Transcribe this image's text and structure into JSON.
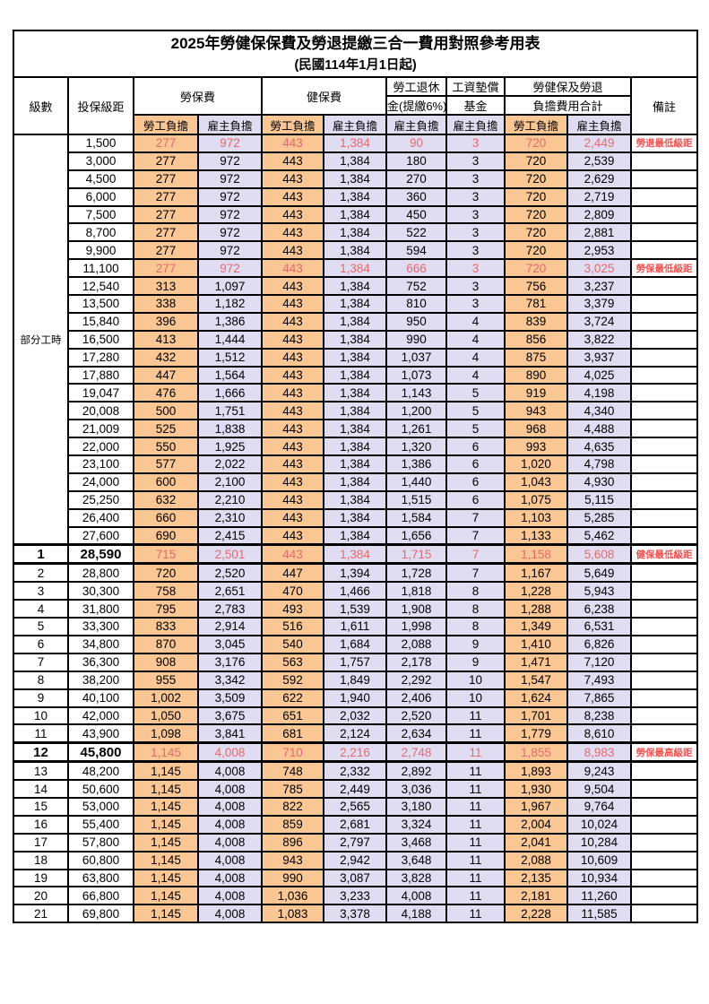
{
  "title": "2025年勞健保保費及勞退提繳三合一費用對照參考用表",
  "subtitle": "(民國114年1月1日起)",
  "columns": {
    "level": "級數",
    "bracket": "投保級距",
    "labor_group": "勞保費",
    "health_group": "健保費",
    "pension_line1": "勞工退休",
    "pension_line2": "金(提繳6%)",
    "wage_fund_line1": "工資墊償",
    "wage_fund_line2": "基金",
    "total_line1": "勞健保及勞退",
    "total_line2": "負擔費用合計",
    "remark": "備註",
    "employee": "勞工負擔",
    "employer": "雇主負擔"
  },
  "part_time_label": "部分工時",
  "colors": {
    "employee_fill": "#FAC693",
    "employer_fill": "#E0DDF2",
    "highlight_value_text": "#E8696B",
    "remark_text": "#EF5350",
    "border": "#000000"
  },
  "remarks_legend": [
    "勞退最低級距",
    "勞保最低級距",
    "健保最低級距",
    "勞保最高級距"
  ],
  "rows": [
    {
      "lv": "",
      "br": "1,500",
      "le": "277",
      "lr": "972",
      "he": "443",
      "hr": "1,384",
      "pe": "90",
      "wf": "3",
      "te": "720",
      "tr": "2,449",
      "rm": "勞退最低級距",
      "hl": true,
      "bd": false
    },
    {
      "lv": "",
      "br": "3,000",
      "le": "277",
      "lr": "972",
      "he": "443",
      "hr": "1,384",
      "pe": "180",
      "wf": "3",
      "te": "720",
      "tr": "2,539",
      "rm": "",
      "hl": false,
      "bd": false
    },
    {
      "lv": "",
      "br": "4,500",
      "le": "277",
      "lr": "972",
      "he": "443",
      "hr": "1,384",
      "pe": "270",
      "wf": "3",
      "te": "720",
      "tr": "2,629",
      "rm": "",
      "hl": false,
      "bd": false
    },
    {
      "lv": "",
      "br": "6,000",
      "le": "277",
      "lr": "972",
      "he": "443",
      "hr": "1,384",
      "pe": "360",
      "wf": "3",
      "te": "720",
      "tr": "2,719",
      "rm": "",
      "hl": false,
      "bd": false
    },
    {
      "lv": "",
      "br": "7,500",
      "le": "277",
      "lr": "972",
      "he": "443",
      "hr": "1,384",
      "pe": "450",
      "wf": "3",
      "te": "720",
      "tr": "2,809",
      "rm": "",
      "hl": false,
      "bd": false
    },
    {
      "lv": "",
      "br": "8,700",
      "le": "277",
      "lr": "972",
      "he": "443",
      "hr": "1,384",
      "pe": "522",
      "wf": "3",
      "te": "720",
      "tr": "2,881",
      "rm": "",
      "hl": false,
      "bd": false
    },
    {
      "lv": "",
      "br": "9,900",
      "le": "277",
      "lr": "972",
      "he": "443",
      "hr": "1,384",
      "pe": "594",
      "wf": "3",
      "te": "720",
      "tr": "2,953",
      "rm": "",
      "hl": false,
      "bd": false
    },
    {
      "lv": "",
      "br": "11,100",
      "le": "277",
      "lr": "972",
      "he": "443",
      "hr": "1,384",
      "pe": "666",
      "wf": "3",
      "te": "720",
      "tr": "3,025",
      "rm": "勞保最低級距",
      "hl": true,
      "bd": false
    },
    {
      "lv": "",
      "br": "12,540",
      "le": "313",
      "lr": "1,097",
      "he": "443",
      "hr": "1,384",
      "pe": "752",
      "wf": "3",
      "te": "756",
      "tr": "3,237",
      "rm": "",
      "hl": false,
      "bd": false
    },
    {
      "lv": "",
      "br": "13,500",
      "le": "338",
      "lr": "1,182",
      "he": "443",
      "hr": "1,384",
      "pe": "810",
      "wf": "3",
      "te": "781",
      "tr": "3,379",
      "rm": "",
      "hl": false,
      "bd": false
    },
    {
      "lv": "",
      "br": "15,840",
      "le": "396",
      "lr": "1,386",
      "he": "443",
      "hr": "1,384",
      "pe": "950",
      "wf": "4",
      "te": "839",
      "tr": "3,724",
      "rm": "",
      "hl": false,
      "bd": false
    },
    {
      "lv": "",
      "br": "16,500",
      "le": "413",
      "lr": "1,444",
      "he": "443",
      "hr": "1,384",
      "pe": "990",
      "wf": "4",
      "te": "856",
      "tr": "3,822",
      "rm": "",
      "hl": false,
      "bd": false
    },
    {
      "lv": "",
      "br": "17,280",
      "le": "432",
      "lr": "1,512",
      "he": "443",
      "hr": "1,384",
      "pe": "1,037",
      "wf": "4",
      "te": "875",
      "tr": "3,937",
      "rm": "",
      "hl": false,
      "bd": false
    },
    {
      "lv": "",
      "br": "17,880",
      "le": "447",
      "lr": "1,564",
      "he": "443",
      "hr": "1,384",
      "pe": "1,073",
      "wf": "4",
      "te": "890",
      "tr": "4,025",
      "rm": "",
      "hl": false,
      "bd": false
    },
    {
      "lv": "",
      "br": "19,047",
      "le": "476",
      "lr": "1,666",
      "he": "443",
      "hr": "1,384",
      "pe": "1,143",
      "wf": "5",
      "te": "919",
      "tr": "4,198",
      "rm": "",
      "hl": false,
      "bd": false
    },
    {
      "lv": "",
      "br": "20,008",
      "le": "500",
      "lr": "1,751",
      "he": "443",
      "hr": "1,384",
      "pe": "1,200",
      "wf": "5",
      "te": "943",
      "tr": "4,340",
      "rm": "",
      "hl": false,
      "bd": false
    },
    {
      "lv": "",
      "br": "21,009",
      "le": "525",
      "lr": "1,838",
      "he": "443",
      "hr": "1,384",
      "pe": "1,261",
      "wf": "5",
      "te": "968",
      "tr": "4,488",
      "rm": "",
      "hl": false,
      "bd": false
    },
    {
      "lv": "",
      "br": "22,000",
      "le": "550",
      "lr": "1,925",
      "he": "443",
      "hr": "1,384",
      "pe": "1,320",
      "wf": "6",
      "te": "993",
      "tr": "4,635",
      "rm": "",
      "hl": false,
      "bd": false
    },
    {
      "lv": "",
      "br": "23,100",
      "le": "577",
      "lr": "2,022",
      "he": "443",
      "hr": "1,384",
      "pe": "1,386",
      "wf": "6",
      "te": "1,020",
      "tr": "4,798",
      "rm": "",
      "hl": false,
      "bd": false
    },
    {
      "lv": "",
      "br": "24,000",
      "le": "600",
      "lr": "2,100",
      "he": "443",
      "hr": "1,384",
      "pe": "1,440",
      "wf": "6",
      "te": "1,043",
      "tr": "4,930",
      "rm": "",
      "hl": false,
      "bd": false
    },
    {
      "lv": "",
      "br": "25,250",
      "le": "632",
      "lr": "2,210",
      "he": "443",
      "hr": "1,384",
      "pe": "1,515",
      "wf": "6",
      "te": "1,075",
      "tr": "5,115",
      "rm": "",
      "hl": false,
      "bd": false
    },
    {
      "lv": "",
      "br": "26,400",
      "le": "660",
      "lr": "2,310",
      "he": "443",
      "hr": "1,384",
      "pe": "1,584",
      "wf": "7",
      "te": "1,103",
      "tr": "5,285",
      "rm": "",
      "hl": false,
      "bd": false
    },
    {
      "lv": "",
      "br": "27,600",
      "le": "690",
      "lr": "2,415",
      "he": "443",
      "hr": "1,384",
      "pe": "1,656",
      "wf": "7",
      "te": "1,133",
      "tr": "5,462",
      "rm": "",
      "hl": false,
      "bd": false
    },
    {
      "lv": "1",
      "br": "28,590",
      "le": "715",
      "lr": "2,501",
      "he": "443",
      "hr": "1,384",
      "pe": "1,715",
      "wf": "7",
      "te": "1,158",
      "tr": "5,608",
      "rm": "健保最低級距",
      "hl": true,
      "bd": true
    },
    {
      "lv": "2",
      "br": "28,800",
      "le": "720",
      "lr": "2,520",
      "he": "447",
      "hr": "1,394",
      "pe": "1,728",
      "wf": "7",
      "te": "1,167",
      "tr": "5,649",
      "rm": "",
      "hl": false,
      "bd": false
    },
    {
      "lv": "3",
      "br": "30,300",
      "le": "758",
      "lr": "2,651",
      "he": "470",
      "hr": "1,466",
      "pe": "1,818",
      "wf": "8",
      "te": "1,228",
      "tr": "5,943",
      "rm": "",
      "hl": false,
      "bd": false
    },
    {
      "lv": "4",
      "br": "31,800",
      "le": "795",
      "lr": "2,783",
      "he": "493",
      "hr": "1,539",
      "pe": "1,908",
      "wf": "8",
      "te": "1,288",
      "tr": "6,238",
      "rm": "",
      "hl": false,
      "bd": false
    },
    {
      "lv": "5",
      "br": "33,300",
      "le": "833",
      "lr": "2,914",
      "he": "516",
      "hr": "1,611",
      "pe": "1,998",
      "wf": "8",
      "te": "1,349",
      "tr": "6,531",
      "rm": "",
      "hl": false,
      "bd": false
    },
    {
      "lv": "6",
      "br": "34,800",
      "le": "870",
      "lr": "3,045",
      "he": "540",
      "hr": "1,684",
      "pe": "2,088",
      "wf": "9",
      "te": "1,410",
      "tr": "6,826",
      "rm": "",
      "hl": false,
      "bd": false
    },
    {
      "lv": "7",
      "br": "36,300",
      "le": "908",
      "lr": "3,176",
      "he": "563",
      "hr": "1,757",
      "pe": "2,178",
      "wf": "9",
      "te": "1,471",
      "tr": "7,120",
      "rm": "",
      "hl": false,
      "bd": false
    },
    {
      "lv": "8",
      "br": "38,200",
      "le": "955",
      "lr": "3,342",
      "he": "592",
      "hr": "1,849",
      "pe": "2,292",
      "wf": "10",
      "te": "1,547",
      "tr": "7,493",
      "rm": "",
      "hl": false,
      "bd": false
    },
    {
      "lv": "9",
      "br": "40,100",
      "le": "1,002",
      "lr": "3,509",
      "he": "622",
      "hr": "1,940",
      "pe": "2,406",
      "wf": "10",
      "te": "1,624",
      "tr": "7,865",
      "rm": "",
      "hl": false,
      "bd": false
    },
    {
      "lv": "10",
      "br": "42,000",
      "le": "1,050",
      "lr": "3,675",
      "he": "651",
      "hr": "2,032",
      "pe": "2,520",
      "wf": "11",
      "te": "1,701",
      "tr": "8,238",
      "rm": "",
      "hl": false,
      "bd": false
    },
    {
      "lv": "11",
      "br": "43,900",
      "le": "1,098",
      "lr": "3,841",
      "he": "681",
      "hr": "2,124",
      "pe": "2,634",
      "wf": "11",
      "te": "1,779",
      "tr": "8,610",
      "rm": "",
      "hl": false,
      "bd": false
    },
    {
      "lv": "12",
      "br": "45,800",
      "le": "1,145",
      "lr": "4,008",
      "he": "710",
      "hr": "2,216",
      "pe": "2,748",
      "wf": "11",
      "te": "1,855",
      "tr": "8,983",
      "rm": "勞保最高級距",
      "hl": true,
      "bd": true
    },
    {
      "lv": "13",
      "br": "48,200",
      "le": "1,145",
      "lr": "4,008",
      "he": "748",
      "hr": "2,332",
      "pe": "2,892",
      "wf": "11",
      "te": "1,893",
      "tr": "9,243",
      "rm": "",
      "hl": false,
      "bd": false
    },
    {
      "lv": "14",
      "br": "50,600",
      "le": "1,145",
      "lr": "4,008",
      "he": "785",
      "hr": "2,449",
      "pe": "3,036",
      "wf": "11",
      "te": "1,930",
      "tr": "9,504",
      "rm": "",
      "hl": false,
      "bd": false
    },
    {
      "lv": "15",
      "br": "53,000",
      "le": "1,145",
      "lr": "4,008",
      "he": "822",
      "hr": "2,565",
      "pe": "3,180",
      "wf": "11",
      "te": "1,967",
      "tr": "9,764",
      "rm": "",
      "hl": false,
      "bd": false
    },
    {
      "lv": "16",
      "br": "55,400",
      "le": "1,145",
      "lr": "4,008",
      "he": "859",
      "hr": "2,681",
      "pe": "3,324",
      "wf": "11",
      "te": "2,004",
      "tr": "10,024",
      "rm": "",
      "hl": false,
      "bd": false
    },
    {
      "lv": "17",
      "br": "57,800",
      "le": "1,145",
      "lr": "4,008",
      "he": "896",
      "hr": "2,797",
      "pe": "3,468",
      "wf": "11",
      "te": "2,041",
      "tr": "10,284",
      "rm": "",
      "hl": false,
      "bd": false
    },
    {
      "lv": "18",
      "br": "60,800",
      "le": "1,145",
      "lr": "4,008",
      "he": "943",
      "hr": "2,942",
      "pe": "3,648",
      "wf": "11",
      "te": "2,088",
      "tr": "10,609",
      "rm": "",
      "hl": false,
      "bd": false
    },
    {
      "lv": "19",
      "br": "63,800",
      "le": "1,145",
      "lr": "4,008",
      "he": "990",
      "hr": "3,087",
      "pe": "3,828",
      "wf": "11",
      "te": "2,135",
      "tr": "10,934",
      "rm": "",
      "hl": false,
      "bd": false
    },
    {
      "lv": "20",
      "br": "66,800",
      "le": "1,145",
      "lr": "4,008",
      "he": "1,036",
      "hr": "3,233",
      "pe": "4,008",
      "wf": "11",
      "te": "2,181",
      "tr": "11,260",
      "rm": "",
      "hl": false,
      "bd": false
    },
    {
      "lv": "21",
      "br": "69,800",
      "le": "1,145",
      "lr": "4,008",
      "he": "1,083",
      "hr": "3,378",
      "pe": "4,188",
      "wf": "11",
      "te": "2,228",
      "tr": "11,585",
      "rm": "",
      "hl": false,
      "bd": false
    }
  ]
}
